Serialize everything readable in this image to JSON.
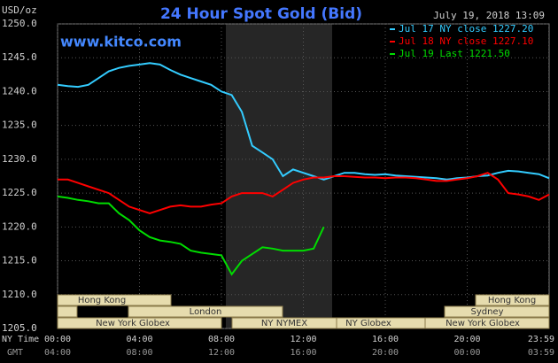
{
  "chart_data": {
    "type": "line",
    "title": "24 Hour Spot Gold (Bid)",
    "timestamp": "July 19, 2018 13:09",
    "unit_label": "USD/oz",
    "watermark": "www.kitco.com",
    "x_axis_label": "NY Time",
    "x2_axis_label": "GMT",
    "xlim": [
      0,
      24
    ],
    "xticks": [
      {
        "value": 0,
        "label": "00:00"
      },
      {
        "value": 4,
        "label": "04:00"
      },
      {
        "value": 8,
        "label": "08:00"
      },
      {
        "value": 12,
        "label": "12:00"
      },
      {
        "value": 16,
        "label": "16:00"
      },
      {
        "value": 20,
        "label": "20:00"
      },
      {
        "value": 23.98,
        "label": "23:59"
      }
    ],
    "x2ticks": [
      {
        "value": 0,
        "label": "04:00"
      },
      {
        "value": 4,
        "label": "08:00"
      },
      {
        "value": 8,
        "label": "12:00"
      },
      {
        "value": 12,
        "label": "16:00"
      },
      {
        "value": 16,
        "label": "20:00"
      },
      {
        "value": 20,
        "label": "00:00"
      },
      {
        "value": 23.98,
        "label": "03:59"
      }
    ],
    "ylim": [
      1205,
      1250
    ],
    "yticks": [
      {
        "value": 1205,
        "label": "1205.0"
      },
      {
        "value": 1210,
        "label": "1210.0"
      },
      {
        "value": 1215,
        "label": "1215.0"
      },
      {
        "value": 1220,
        "label": "1220.0"
      },
      {
        "value": 1225,
        "label": "1225.0"
      },
      {
        "value": 1230,
        "label": "1230.0"
      },
      {
        "value": 1235,
        "label": "1235.0"
      },
      {
        "value": 1240,
        "label": "1240.0"
      },
      {
        "value": 1245,
        "label": "1245.0"
      },
      {
        "value": 1250,
        "label": "1250.0"
      }
    ],
    "grid": true,
    "legend": "top-right",
    "x": [
      0,
      0.5,
      1,
      1.5,
      2,
      2.5,
      3,
      3.5,
      4,
      4.5,
      5,
      5.5,
      6,
      6.5,
      7,
      7.5,
      8,
      8.5,
      9,
      9.5,
      10,
      10.5,
      11,
      11.5,
      12,
      12.5,
      13,
      13.5,
      14,
      14.5,
      15,
      15.5,
      16,
      16.5,
      17,
      17.5,
      18,
      18.5,
      19,
      19.5,
      20,
      20.5,
      21,
      21.5,
      22,
      22.5,
      23,
      23.5,
      24
    ],
    "series": [
      {
        "name": "Jul 17 NY close 1227.20",
        "color": "#33ccff",
        "values": [
          1241,
          1240.8,
          1240.7,
          1241,
          1242,
          1243,
          1243.5,
          1243.8,
          1244,
          1244.2,
          1244,
          1243.2,
          1242.5,
          1242,
          1241.5,
          1241,
          1240,
          1239.5,
          1237,
          1232,
          1231,
          1230,
          1227.5,
          1228.5,
          1228,
          1227.5,
          1227,
          1227.5,
          1228,
          1228,
          1227.8,
          1227.7,
          1227.8,
          1227.6,
          1227.5,
          1227.4,
          1227.3,
          1227.2,
          1227,
          1227.2,
          1227.3,
          1227.5,
          1227.6,
          1228,
          1228.3,
          1228.2,
          1228,
          1227.8,
          1227.2
        ]
      },
      {
        "name": "Jul 18 NY close 1227.10",
        "color": "#ff0000",
        "values": [
          1227,
          1227,
          1226.5,
          1226,
          1225.5,
          1225,
          1224,
          1223,
          1222.5,
          1222,
          1222.5,
          1223,
          1223.2,
          1223,
          1223,
          1223.3,
          1223.5,
          1224.5,
          1225,
          1225,
          1225,
          1224.5,
          1225.5,
          1226.5,
          1227,
          1227.3,
          1227.3,
          1227.5,
          1227.5,
          1227.4,
          1227.3,
          1227.3,
          1227.2,
          1227.3,
          1227.3,
          1227.2,
          1227,
          1226.8,
          1226.8,
          1227,
          1227.2,
          1227.5,
          1228,
          1227,
          1225,
          1224.8,
          1224.5,
          1224,
          1224.8
        ]
      },
      {
        "name": "Jul 19 Last 1221.50",
        "color": "#00dd00",
        "values": [
          1224.5,
          1224.3,
          1224,
          1223.8,
          1223.5,
          1223.5,
          1222,
          1221,
          1219.5,
          1218.5,
          1218,
          1217.8,
          1217.5,
          1216.5,
          1216.2,
          1216,
          1215.8,
          1213,
          1215,
          1216,
          1217,
          1216.8,
          1216.5,
          1216.5,
          1216.5,
          1216.8,
          1220,
          null,
          null,
          null,
          null,
          null,
          null,
          null,
          null,
          null,
          null,
          null,
          null,
          null,
          null,
          null,
          null,
          null,
          null,
          null,
          null,
          null,
          null
        ]
      }
    ],
    "sessions": [
      "Hong Kong",
      "London",
      "New York Globex",
      "NY NYMEX",
      "NY Globex",
      "Hong Kong",
      "Sydney",
      "New York Globex"
    ]
  }
}
